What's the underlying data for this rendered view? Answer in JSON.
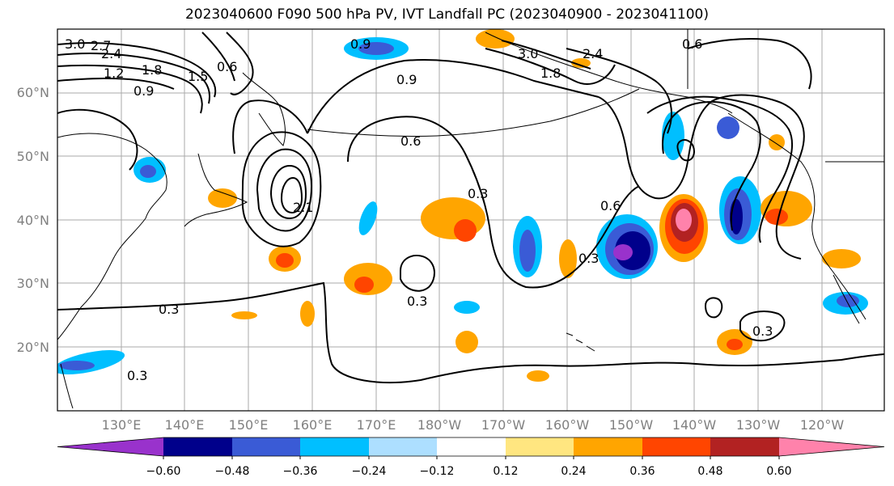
{
  "title": "2023040600 F090 500 hPa PV, IVT Landfall PC (2023040900 - 2023041100)",
  "map": {
    "lat_labels": [
      "60°N",
      "50°N",
      "40°N",
      "30°N",
      "20°N"
    ],
    "lon_labels": [
      "130°E",
      "140°E",
      "150°E",
      "160°E",
      "170°E",
      "180°W",
      "170°W",
      "160°W",
      "150°W",
      "140°W",
      "130°W",
      "120°W"
    ],
    "grid": true,
    "contour_labels": [
      "3.0",
      "2.7",
      "2.4",
      "2.1",
      "1.8",
      "1.5",
      "1.2",
      "0.9",
      "0.6",
      "0.3"
    ],
    "background": "#ffffff",
    "coastline_color": "#000000"
  },
  "colorbar": {
    "ticks": [
      "−0.60",
      "−0.48",
      "−0.36",
      "−0.24",
      "−0.12",
      "0.12",
      "0.24",
      "0.36",
      "0.48",
      "0.60"
    ],
    "colors": [
      "#9932CC",
      "#00008B",
      "#3A5BD6",
      "#00BFFF",
      "#ADDFFF",
      "#FFFFFF",
      "#FFE680",
      "#FFA500",
      "#FF4500",
      "#B22222",
      "#FF82AB"
    ]
  }
}
